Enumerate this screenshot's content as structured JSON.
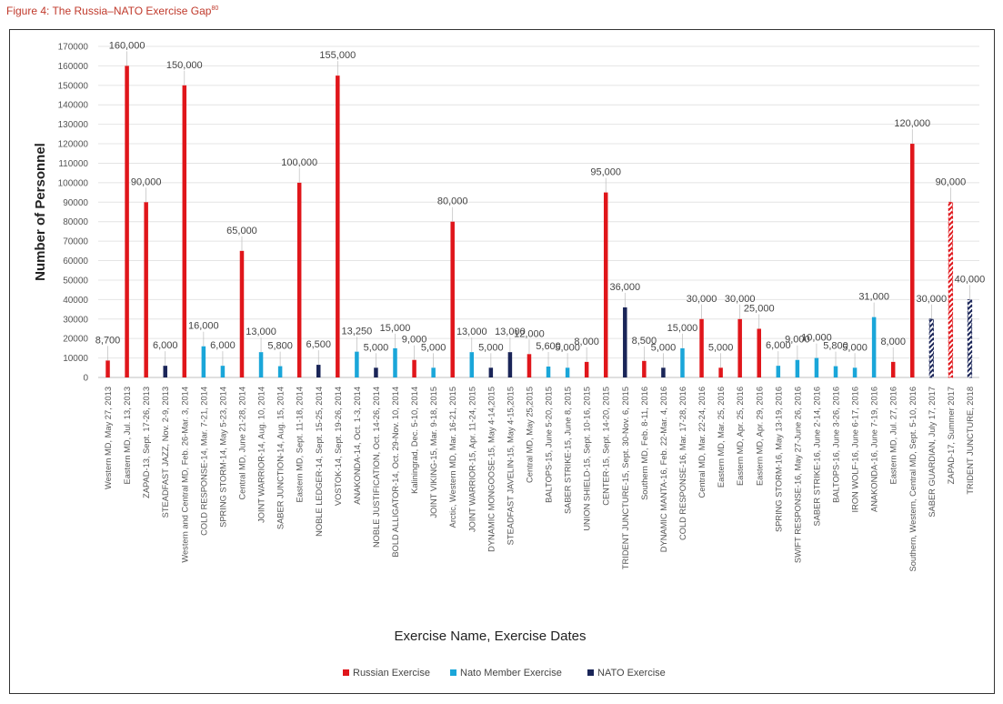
{
  "figure": {
    "label": "Figure 4: The Russia–NATO Exercise Gap",
    "footnote": "80"
  },
  "colors": {
    "Russian Exercise": "#e0161b",
    "Nato Member Exercise": "#1aa6d9",
    "NATO Exercise": "#1a2558",
    "hatch_red": "#e0161b",
    "hatch_navy": "#1a2558"
  },
  "chart_data": {
    "type": "bar",
    "title": "",
    "xlabel": "Exercise Name, Exercise Dates",
    "ylabel": "Number of Personnel",
    "ylim": [
      0,
      170000
    ],
    "yticks": [
      0,
      10000,
      20000,
      30000,
      40000,
      50000,
      60000,
      70000,
      80000,
      90000,
      100000,
      110000,
      120000,
      130000,
      140000,
      150000,
      160000,
      170000
    ],
    "ytick_labels": [
      "0",
      "10000",
      "20000",
      "30000",
      "40000",
      "50000",
      "60000",
      "70000",
      "80000",
      "90000",
      "100000",
      "110000",
      "120000",
      "130000",
      "140000",
      "150000",
      "160000",
      "170000"
    ],
    "grid": true,
    "legend_position": "bottom",
    "legend": [
      "Russian Exercise",
      "Nato Member Exercise",
      "NATO Exercise"
    ],
    "categories": [
      "Western MD, May 27, 2013",
      "Eastern MD, Jul. 13, 2013",
      "ZAPAD-13, Sept. 17-26, 2013",
      "STEADFAST JAZZ, Nov. 2-9, 2013",
      "Western and Central MD, Feb. 26-Mar. 3, 2014",
      "COLD RESPONSE-14, Mar. 7-21, 2014",
      "SPRING STORM-14, May 5-23, 2014",
      "Central MD, June 21-28, 2014",
      "JOINT WARRIOR-14, Aug. 10, 2014",
      "SABER JUNCTION-14, Aug. 15, 2014",
      "Eastern MD, Sept. 11-18, 2014",
      "NOBLE LEDGER-14, Sept. 15-25, 2014",
      "VOSTOK-14, Sept. 19-26, 2014",
      "ANAKONDA-14, Oct. 1-3, 2014",
      "NOBLE JUSTIFICATION, Oct. 14-26, 2014",
      "BOLD ALLIGATOR-14, Oct. 29-Nov. 10, 2014",
      "Kaliningrad, Dec. 5-10, 2014",
      "JOINT VIKING-15, Mar. 9-18, 2015",
      "Arctic, Western MD, Mar. 16-21, 2015",
      "JOINT WARRIOR-15, Apr. 11-24, 2015",
      "DYNAMIC MONGOOSE-15, May 4-14,2015",
      "STEADFAST JAVELIN-15, May 4-15,2015",
      "Central MD, May 25,2015",
      "BALTOPS-15, June 5-20, 2015",
      "SABER STRIKE-15, June 8, 2015",
      "UNION SHIELD-15, Sept. 10-16, 2015",
      "CENTER-15, Sept. 14-20, 2015",
      "TRIDENT JUNCTURE-15, Sept. 30-Nov. 6, 2015",
      "Southern MD, Feb. 8-11, 2016",
      "DYNAMIC MANTA-16, Feb. 22-Mar. 4, 2016",
      "COLD RESPONSE-16, Mar. 17-28, 2016",
      "Central MD, Mar. 22-24, 2016",
      "Eastern MD, Mar. 25, 2016",
      "Eastern MD, Apr. 25, 2016",
      "Eastern MD, Apr. 29, 2016",
      "SPRING STORM-16, May 13-19, 2016",
      "SWIFT RESPONSE-16, May 27-June 26, 2016",
      "SABER STRIKE-16, June 2-14, 2016",
      "BALTOPS-16, June 3-26, 2016",
      "IRON WOLF-16, June 6-17, 2016",
      "ANAKONDA-16, June 7-19, 2016",
      "Eastern MD, Jul. 27, 2016",
      "Southern, Western, Central MD, Sept. 5-10, 2016",
      "SABER GUARDIAN, July 17, 2017",
      "ZAPAD-17, Summer 2017",
      "TRIDENT JUNCTURE, 2018"
    ],
    "values": [
      8700,
      160000,
      90000,
      6000,
      150000,
      16000,
      6000,
      65000,
      13000,
      5800,
      100000,
      6500,
      155000,
      13250,
      5000,
      15000,
      9000,
      5000,
      80000,
      13000,
      5000,
      13000,
      12000,
      5600,
      5000,
      8000,
      95000,
      36000,
      8500,
      5000,
      15000,
      30000,
      5000,
      30000,
      25000,
      6000,
      9000,
      10000,
      5800,
      5000,
      31000,
      8000,
      120000,
      30000,
      90000,
      40000
    ],
    "data_labels": [
      "8,700",
      "160,000",
      "90,000",
      "6,000",
      "150,000",
      "16,000",
      "6,000",
      "65,000",
      "13,000",
      "5,800",
      "100,000",
      "6,500",
      "155,000",
      "13,250",
      "5,000",
      "15,000",
      "9,000",
      "5,000",
      "80,000",
      "13,000",
      "5,000",
      "13,000",
      "12,000",
      "5,600",
      "5,000",
      "8,000",
      "95,000",
      "36,000",
      "8,500",
      "5,000",
      "15,000",
      "30,000",
      "5,000",
      "30,000",
      "25,000",
      "6,000",
      "9,000",
      "10,000",
      "5,800",
      "5,000",
      "31,000",
      "8,000",
      "120,000",
      "30,000",
      "90,000",
      "40,000"
    ],
    "series_type": [
      "Russian Exercise",
      "Russian Exercise",
      "Russian Exercise",
      "NATO Exercise",
      "Russian Exercise",
      "Nato Member Exercise",
      "Nato Member Exercise",
      "Russian Exercise",
      "Nato Member Exercise",
      "Nato Member Exercise",
      "Russian Exercise",
      "NATO Exercise",
      "Russian Exercise",
      "Nato Member Exercise",
      "NATO Exercise",
      "Nato Member Exercise",
      "Russian Exercise",
      "Nato Member Exercise",
      "Russian Exercise",
      "Nato Member Exercise",
      "NATO Exercise",
      "NATO Exercise",
      "Russian Exercise",
      "Nato Member Exercise",
      "Nato Member Exercise",
      "Russian Exercise",
      "Russian Exercise",
      "NATO Exercise",
      "Russian Exercise",
      "NATO Exercise",
      "Nato Member Exercise",
      "Russian Exercise",
      "Russian Exercise",
      "Russian Exercise",
      "Russian Exercise",
      "Nato Member Exercise",
      "Nato Member Exercise",
      "Nato Member Exercise",
      "Nato Member Exercise",
      "Nato Member Exercise",
      "Nato Member Exercise",
      "Russian Exercise",
      "Russian Exercise",
      "NATO Exercise",
      "Russian Exercise",
      "NATO Exercise"
    ],
    "hatched": [
      false,
      false,
      false,
      false,
      false,
      false,
      false,
      false,
      false,
      false,
      false,
      false,
      false,
      false,
      false,
      false,
      false,
      false,
      false,
      false,
      false,
      false,
      false,
      false,
      false,
      false,
      false,
      false,
      false,
      false,
      false,
      false,
      false,
      false,
      false,
      false,
      false,
      false,
      false,
      false,
      false,
      false,
      false,
      true,
      true,
      true
    ]
  }
}
